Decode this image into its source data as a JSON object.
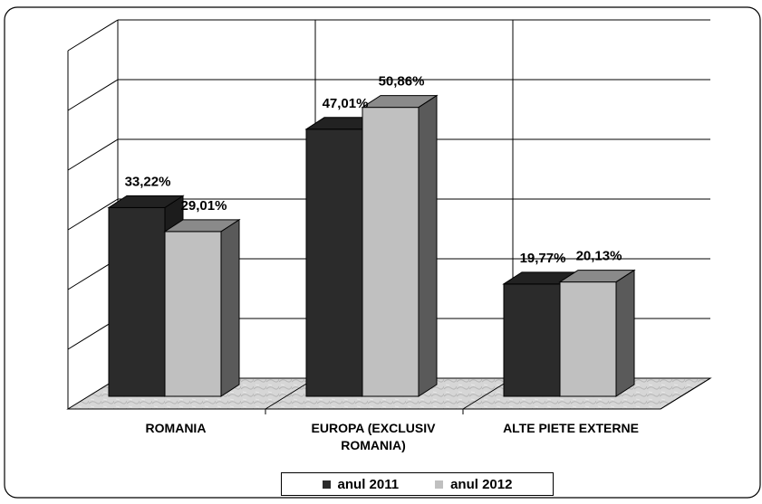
{
  "chart_data": {
    "type": "bar",
    "categories": [
      "ROMANIA",
      "EUROPA (EXCLUSIV ROMANIA)",
      "ALTE PIETE EXTERNE"
    ],
    "category_lines": [
      [
        "ROMANIA"
      ],
      [
        "EUROPA (EXCLUSIV",
        "ROMANIA)"
      ],
      [
        "ALTE PIETE EXTERNE"
      ]
    ],
    "series": [
      {
        "name": "anul 2011",
        "values": [
          33.22,
          47.01,
          19.77
        ],
        "labels": [
          "33,22%",
          "47,01%",
          "19,77%"
        ],
        "color": "#2b2b2b"
      },
      {
        "name": "anul 2012",
        "values": [
          29.01,
          50.86,
          20.13
        ],
        "labels": [
          "29,01%",
          "50,86%",
          "20,13%"
        ],
        "color": "#c0c0c0"
      }
    ],
    "ylim": [
      0,
      60
    ],
    "grid": true,
    "legend": "bottom",
    "three_d": true
  }
}
